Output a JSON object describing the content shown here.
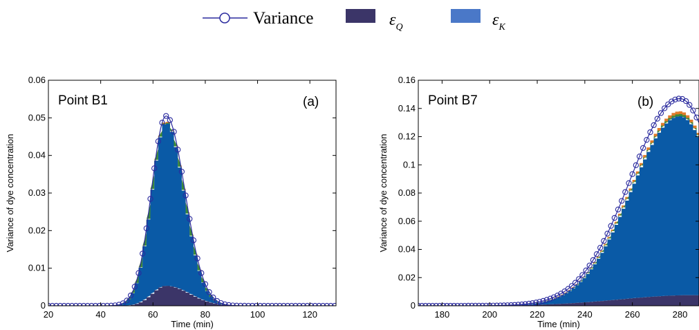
{
  "legend": {
    "variance": "Variance",
    "eq_main": "ε",
    "eq_sub": "Q",
    "ek_main": "ε",
    "ek_sub": "K"
  },
  "colors": {
    "variance": "#2a2a9e",
    "eq": "#3b3568",
    "ek_legend": "#4a78c8",
    "ek_fill": "#0a5aa6",
    "orange": "#e07b2a",
    "green": "#3a8a3a",
    "purple": "#7a3a9a"
  },
  "chart_data": [
    {
      "type": "area",
      "panel_label": "Point B1",
      "tag": "(a)",
      "xlabel": "Time (min)",
      "ylabel": "Variance of dye concentration",
      "xlim": [
        20,
        130
      ],
      "ylim": [
        0,
        0.06
      ],
      "xticks": [
        "20",
        "40",
        "60",
        "80",
        "100",
        "120"
      ],
      "yticks": [
        "0",
        "0.01",
        "0.02",
        "0.03",
        "0.04",
        "0.05",
        "0.06"
      ],
      "variance": {
        "peak_x": 65,
        "peak_y": 0.0505,
        "sigma_left": 5.6,
        "sigma_right": 7.2,
        "x_from": 20,
        "x_to": 130,
        "marker_step": 1.5
      },
      "eps_q": {
        "peak_x": 65,
        "peak_y": 0.0053,
        "sigma_left": 5.2,
        "sigma_right": 9.0
      },
      "eps_k": {
        "peak_x": 65,
        "peak_y": 0.0487,
        "sigma_left": 5.5,
        "sigma_right": 7.0
      }
    },
    {
      "type": "area",
      "panel_label": "Point B7",
      "tag": "(b)",
      "xlabel": "Time (min)",
      "ylabel": "Variance of dye concentration",
      "xlim": [
        170,
        288
      ],
      "ylim": [
        0,
        0.16
      ],
      "xticks": [
        "180",
        "200",
        "220",
        "240",
        "260",
        "280"
      ],
      "yticks": [
        "0",
        "0.02",
        "0.04",
        "0.06",
        "0.08",
        "0.1",
        "0.12",
        "0.14",
        "0.16"
      ],
      "variance": {
        "peak_x": 280,
        "peak_y": 0.147,
        "sigma_left": 21,
        "sigma_right": 16,
        "x_from": 170,
        "x_to": 288,
        "marker_step": 1.5
      },
      "eps_q": {
        "peak_x": 285,
        "peak_y": 0.0075,
        "sigma_left": 30,
        "sigma_right": 20
      },
      "eps_k": {
        "peak_x": 280,
        "peak_y": 0.1345,
        "sigma_left": 20.5,
        "sigma_right": 16
      }
    }
  ]
}
